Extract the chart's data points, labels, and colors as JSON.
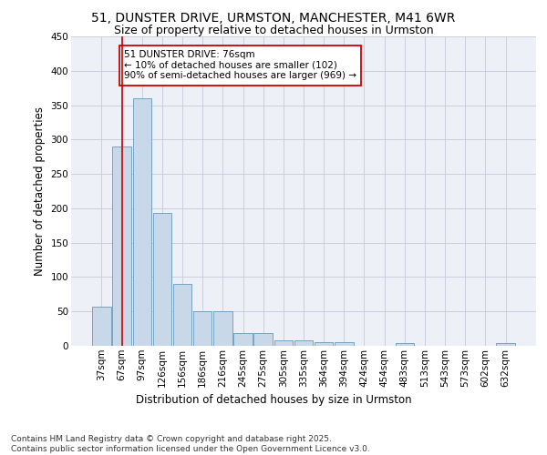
{
  "title_line1": "51, DUNSTER DRIVE, URMSTON, MANCHESTER, M41 6WR",
  "title_line2": "Size of property relative to detached houses in Urmston",
  "xlabel": "Distribution of detached houses by size in Urmston",
  "ylabel": "Number of detached properties",
  "categories": [
    "37sqm",
    "67sqm",
    "97sqm",
    "126sqm",
    "156sqm",
    "186sqm",
    "216sqm",
    "245sqm",
    "275sqm",
    "305sqm",
    "335sqm",
    "364sqm",
    "394sqm",
    "424sqm",
    "454sqm",
    "483sqm",
    "513sqm",
    "543sqm",
    "573sqm",
    "602sqm",
    "632sqm"
  ],
  "values": [
    57,
    290,
    360,
    193,
    90,
    50,
    50,
    18,
    18,
    8,
    8,
    5,
    5,
    0,
    0,
    4,
    0,
    0,
    0,
    0,
    4
  ],
  "bar_color": "#c8d8e8",
  "bar_edge_color": "#6699bb",
  "red_line_x": 1.0,
  "annotation_text": "51 DUNSTER DRIVE: 76sqm\n← 10% of detached houses are smaller (102)\n90% of semi-detached houses are larger (969) →",
  "annotation_box_color": "#ffffff",
  "annotation_box_edge": "#cc0000",
  "red_line_color": "#cc0000",
  "ylim": [
    0,
    450
  ],
  "yticks": [
    0,
    50,
    100,
    150,
    200,
    250,
    300,
    350,
    400,
    450
  ],
  "grid_color": "#ccccdd",
  "background_color": "#eef0f8",
  "footer_text": "Contains HM Land Registry data © Crown copyright and database right 2025.\nContains public sector information licensed under the Open Government Licence v3.0.",
  "title_fontsize": 10,
  "subtitle_fontsize": 9,
  "axis_label_fontsize": 8.5,
  "tick_fontsize": 7.5,
  "annotation_fontsize": 7.5,
  "footer_fontsize": 6.5
}
